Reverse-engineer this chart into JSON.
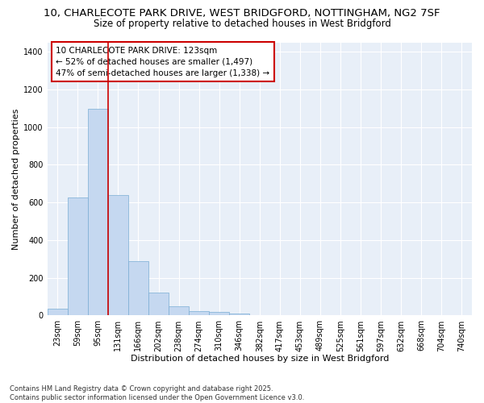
{
  "title_line1": "10, CHARLECOTE PARK DRIVE, WEST BRIDGFORD, NOTTINGHAM, NG2 7SF",
  "title_line2": "Size of property relative to detached houses in West Bridgford",
  "xlabel": "Distribution of detached houses by size in West Bridgford",
  "ylabel": "Number of detached properties",
  "categories": [
    "23sqm",
    "59sqm",
    "95sqm",
    "131sqm",
    "166sqm",
    "202sqm",
    "238sqm",
    "274sqm",
    "310sqm",
    "346sqm",
    "382sqm",
    "417sqm",
    "453sqm",
    "489sqm",
    "525sqm",
    "561sqm",
    "597sqm",
    "632sqm",
    "668sqm",
    "704sqm",
    "740sqm"
  ],
  "values": [
    35,
    625,
    1095,
    640,
    290,
    120,
    50,
    25,
    20,
    10,
    0,
    0,
    0,
    0,
    0,
    0,
    0,
    0,
    0,
    0,
    0
  ],
  "bar_color": "#c5d8f0",
  "bar_edge_color": "#7aadd4",
  "vline_color": "#cc0000",
  "vline_x_idx": 2.5,
  "annotation_text": "10 CHARLECOTE PARK DRIVE: 123sqm\n← 52% of detached houses are smaller (1,497)\n47% of semi-detached houses are larger (1,338) →",
  "annotation_box_edgecolor": "#cc0000",
  "background_color": "#ffffff",
  "plot_bg_color": "#e8eff8",
  "grid_color": "#ffffff",
  "ylim": [
    0,
    1450
  ],
  "yticks": [
    0,
    200,
    400,
    600,
    800,
    1000,
    1200,
    1400
  ],
  "footer_line1": "Contains HM Land Registry data © Crown copyright and database right 2025.",
  "footer_line2": "Contains public sector information licensed under the Open Government Licence v3.0.",
  "title_fontsize": 9.5,
  "subtitle_fontsize": 8.5,
  "axis_label_fontsize": 8,
  "tick_fontsize": 7,
  "annotation_fontsize": 7.5,
  "footer_fontsize": 6
}
